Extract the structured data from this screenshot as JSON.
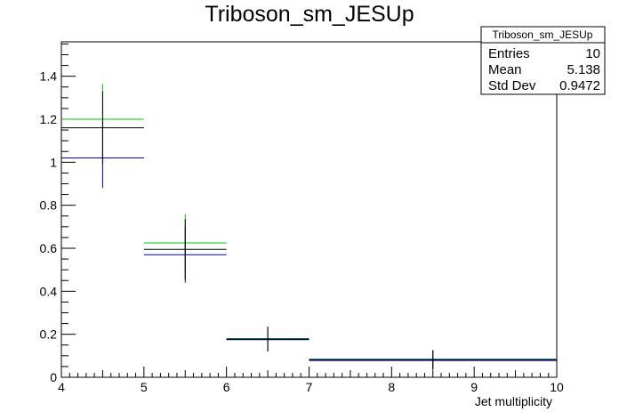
{
  "chart_data": {
    "type": "scatter",
    "title": "Triboson_sm_JESUp",
    "xlabel": "Jet multiplicity",
    "ylabel": "",
    "xlim": [
      4,
      10
    ],
    "ylim": [
      0,
      1.56
    ],
    "x_ticks": [
      "4",
      "5",
      "6",
      "7",
      "8",
      "9",
      "10"
    ],
    "y_ticks": [
      "0",
      "0.2",
      "0.4",
      "0.6",
      "0.8",
      "1",
      "1.2",
      "1.4"
    ],
    "grid": false,
    "legend": "none",
    "series": [
      {
        "color": "#00cc00",
        "points": [
          {
            "xlow": 4,
            "xhigh": 5,
            "y": 1.2,
            "err": 0.165
          },
          {
            "xlow": 5,
            "xhigh": 6,
            "y": 0.625,
            "err": 0.135
          },
          {
            "xlow": 6,
            "xhigh": 7,
            "y": 0.18,
            "err": 0.055
          },
          {
            "xlow": 7,
            "xhigh": 10,
            "y": 0.082,
            "err": 0.045
          }
        ]
      },
      {
        "color": "#0000cc",
        "points": [
          {
            "xlow": 4,
            "xhigh": 5,
            "y": 1.02,
            "err": 0.14
          },
          {
            "xlow": 5,
            "xhigh": 6,
            "y": 0.57,
            "err": 0.13
          },
          {
            "xlow": 6,
            "xhigh": 7,
            "y": 0.175,
            "err": 0.055
          },
          {
            "xlow": 7,
            "xhigh": 10,
            "y": 0.08,
            "err": 0.045
          }
        ]
      },
      {
        "color": "#000000",
        "points": [
          {
            "xlow": 4,
            "xhigh": 5,
            "y": 1.16,
            "err": 0.17
          },
          {
            "xlow": 5,
            "xhigh": 6,
            "y": 0.595,
            "err": 0.14
          },
          {
            "xlow": 6,
            "xhigh": 7,
            "y": 0.178,
            "err": 0.058
          },
          {
            "xlow": 7,
            "xhigh": 10,
            "y": 0.081,
            "err": 0.045
          }
        ]
      }
    ]
  },
  "stats_box": {
    "title": "Triboson_sm_JESUp",
    "entries_label": "Entries",
    "entries_value": "10",
    "mean_label": "Mean",
    "mean_value": "5.138",
    "stddev_label": "Std Dev",
    "stddev_value": "0.9472"
  }
}
